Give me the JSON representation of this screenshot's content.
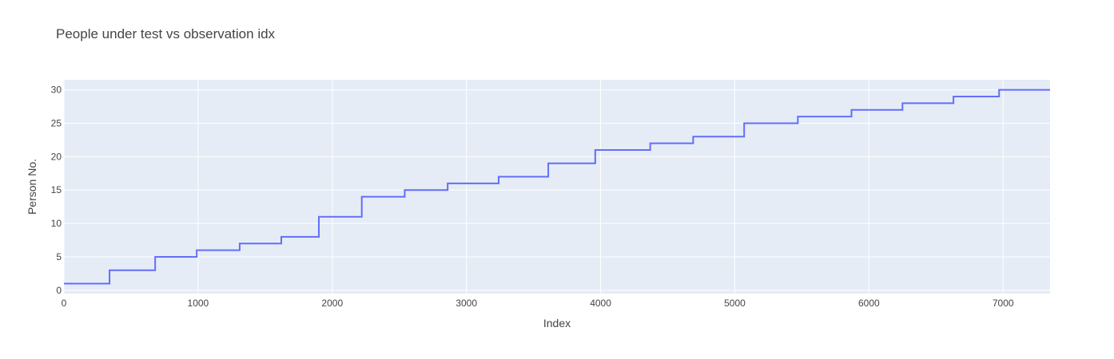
{
  "chart_data": {
    "type": "line",
    "line_shape": "step",
    "title": "People under test vs observation idx",
    "xlabel": "Index",
    "ylabel": "Person No.",
    "xlim": [
      0,
      7350
    ],
    "ylim": [
      -0.5,
      31.5
    ],
    "xticks": [
      0,
      1000,
      2000,
      3000,
      4000,
      5000,
      6000,
      7000
    ],
    "yticks": [
      0,
      5,
      10,
      15,
      20,
      25,
      30
    ],
    "grid": true,
    "legend": "none",
    "colors": {
      "plot_bg": "#e5ecf6",
      "grid": "#ffffff",
      "line": "#636efa",
      "text": "#444444"
    },
    "series": [
      {
        "x": [
          0,
          340,
          680,
          990,
          1310,
          1620,
          1900,
          2220,
          2540,
          2860,
          3240,
          3610,
          3960,
          4370,
          4690,
          5070,
          5470,
          5870,
          6250,
          6630,
          6970,
          7350
        ],
        "y": [
          1,
          3,
          5,
          6,
          7,
          8,
          11,
          14,
          15,
          16,
          17,
          19,
          21,
          22,
          23,
          25,
          26,
          27,
          28,
          29,
          30,
          30
        ]
      }
    ]
  }
}
